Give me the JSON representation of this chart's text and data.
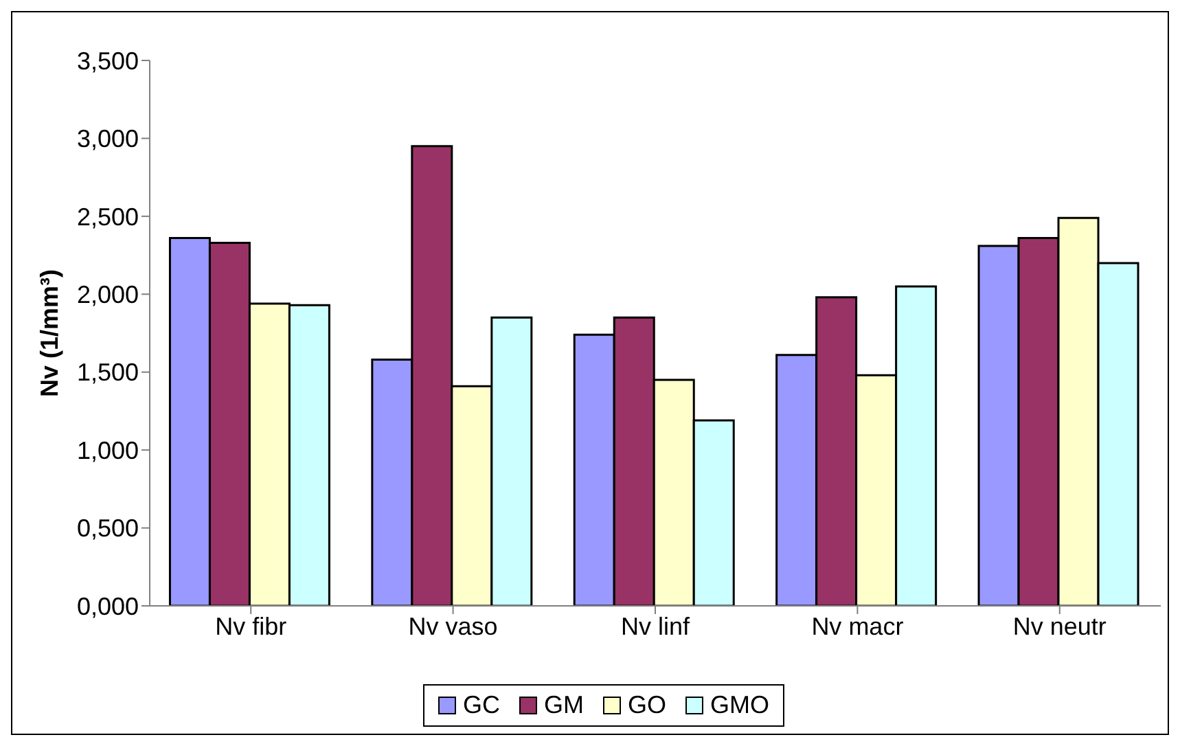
{
  "chart_data": {
    "type": "bar",
    "ylabel": "Nv (1/mm³)",
    "categories": [
      "Nv fibr",
      "Nv vaso",
      "Nv linf",
      "Nv macr",
      "Nv neutr"
    ],
    "series": [
      {
        "name": "GC",
        "color": "#9999ff",
        "values": [
          2.36,
          1.58,
          1.74,
          1.61,
          2.31
        ]
      },
      {
        "name": "GM",
        "color": "#993366",
        "values": [
          2.33,
          2.95,
          1.85,
          1.98,
          2.36
        ]
      },
      {
        "name": "GO",
        "color": "#ffffcc",
        "values": [
          1.94,
          1.41,
          1.45,
          1.48,
          2.49
        ]
      },
      {
        "name": "GMO",
        "color": "#ccffff",
        "values": [
          1.93,
          1.85,
          1.19,
          2.05,
          2.2
        ]
      }
    ],
    "ylim": [
      0,
      3.5
    ],
    "yticks": [
      {
        "value": 0,
        "label": "0,000"
      },
      {
        "value": 0.5,
        "label": "0,500"
      },
      {
        "value": 1,
        "label": "1,000"
      },
      {
        "value": 1.5,
        "label": "1,500"
      },
      {
        "value": 2,
        "label": "2,000"
      },
      {
        "value": 2.5,
        "label": "2,500"
      },
      {
        "value": 3,
        "label": "3,000"
      },
      {
        "value": 3.5,
        "label": "3,500"
      }
    ],
    "grid": false,
    "legend": "bottom"
  }
}
